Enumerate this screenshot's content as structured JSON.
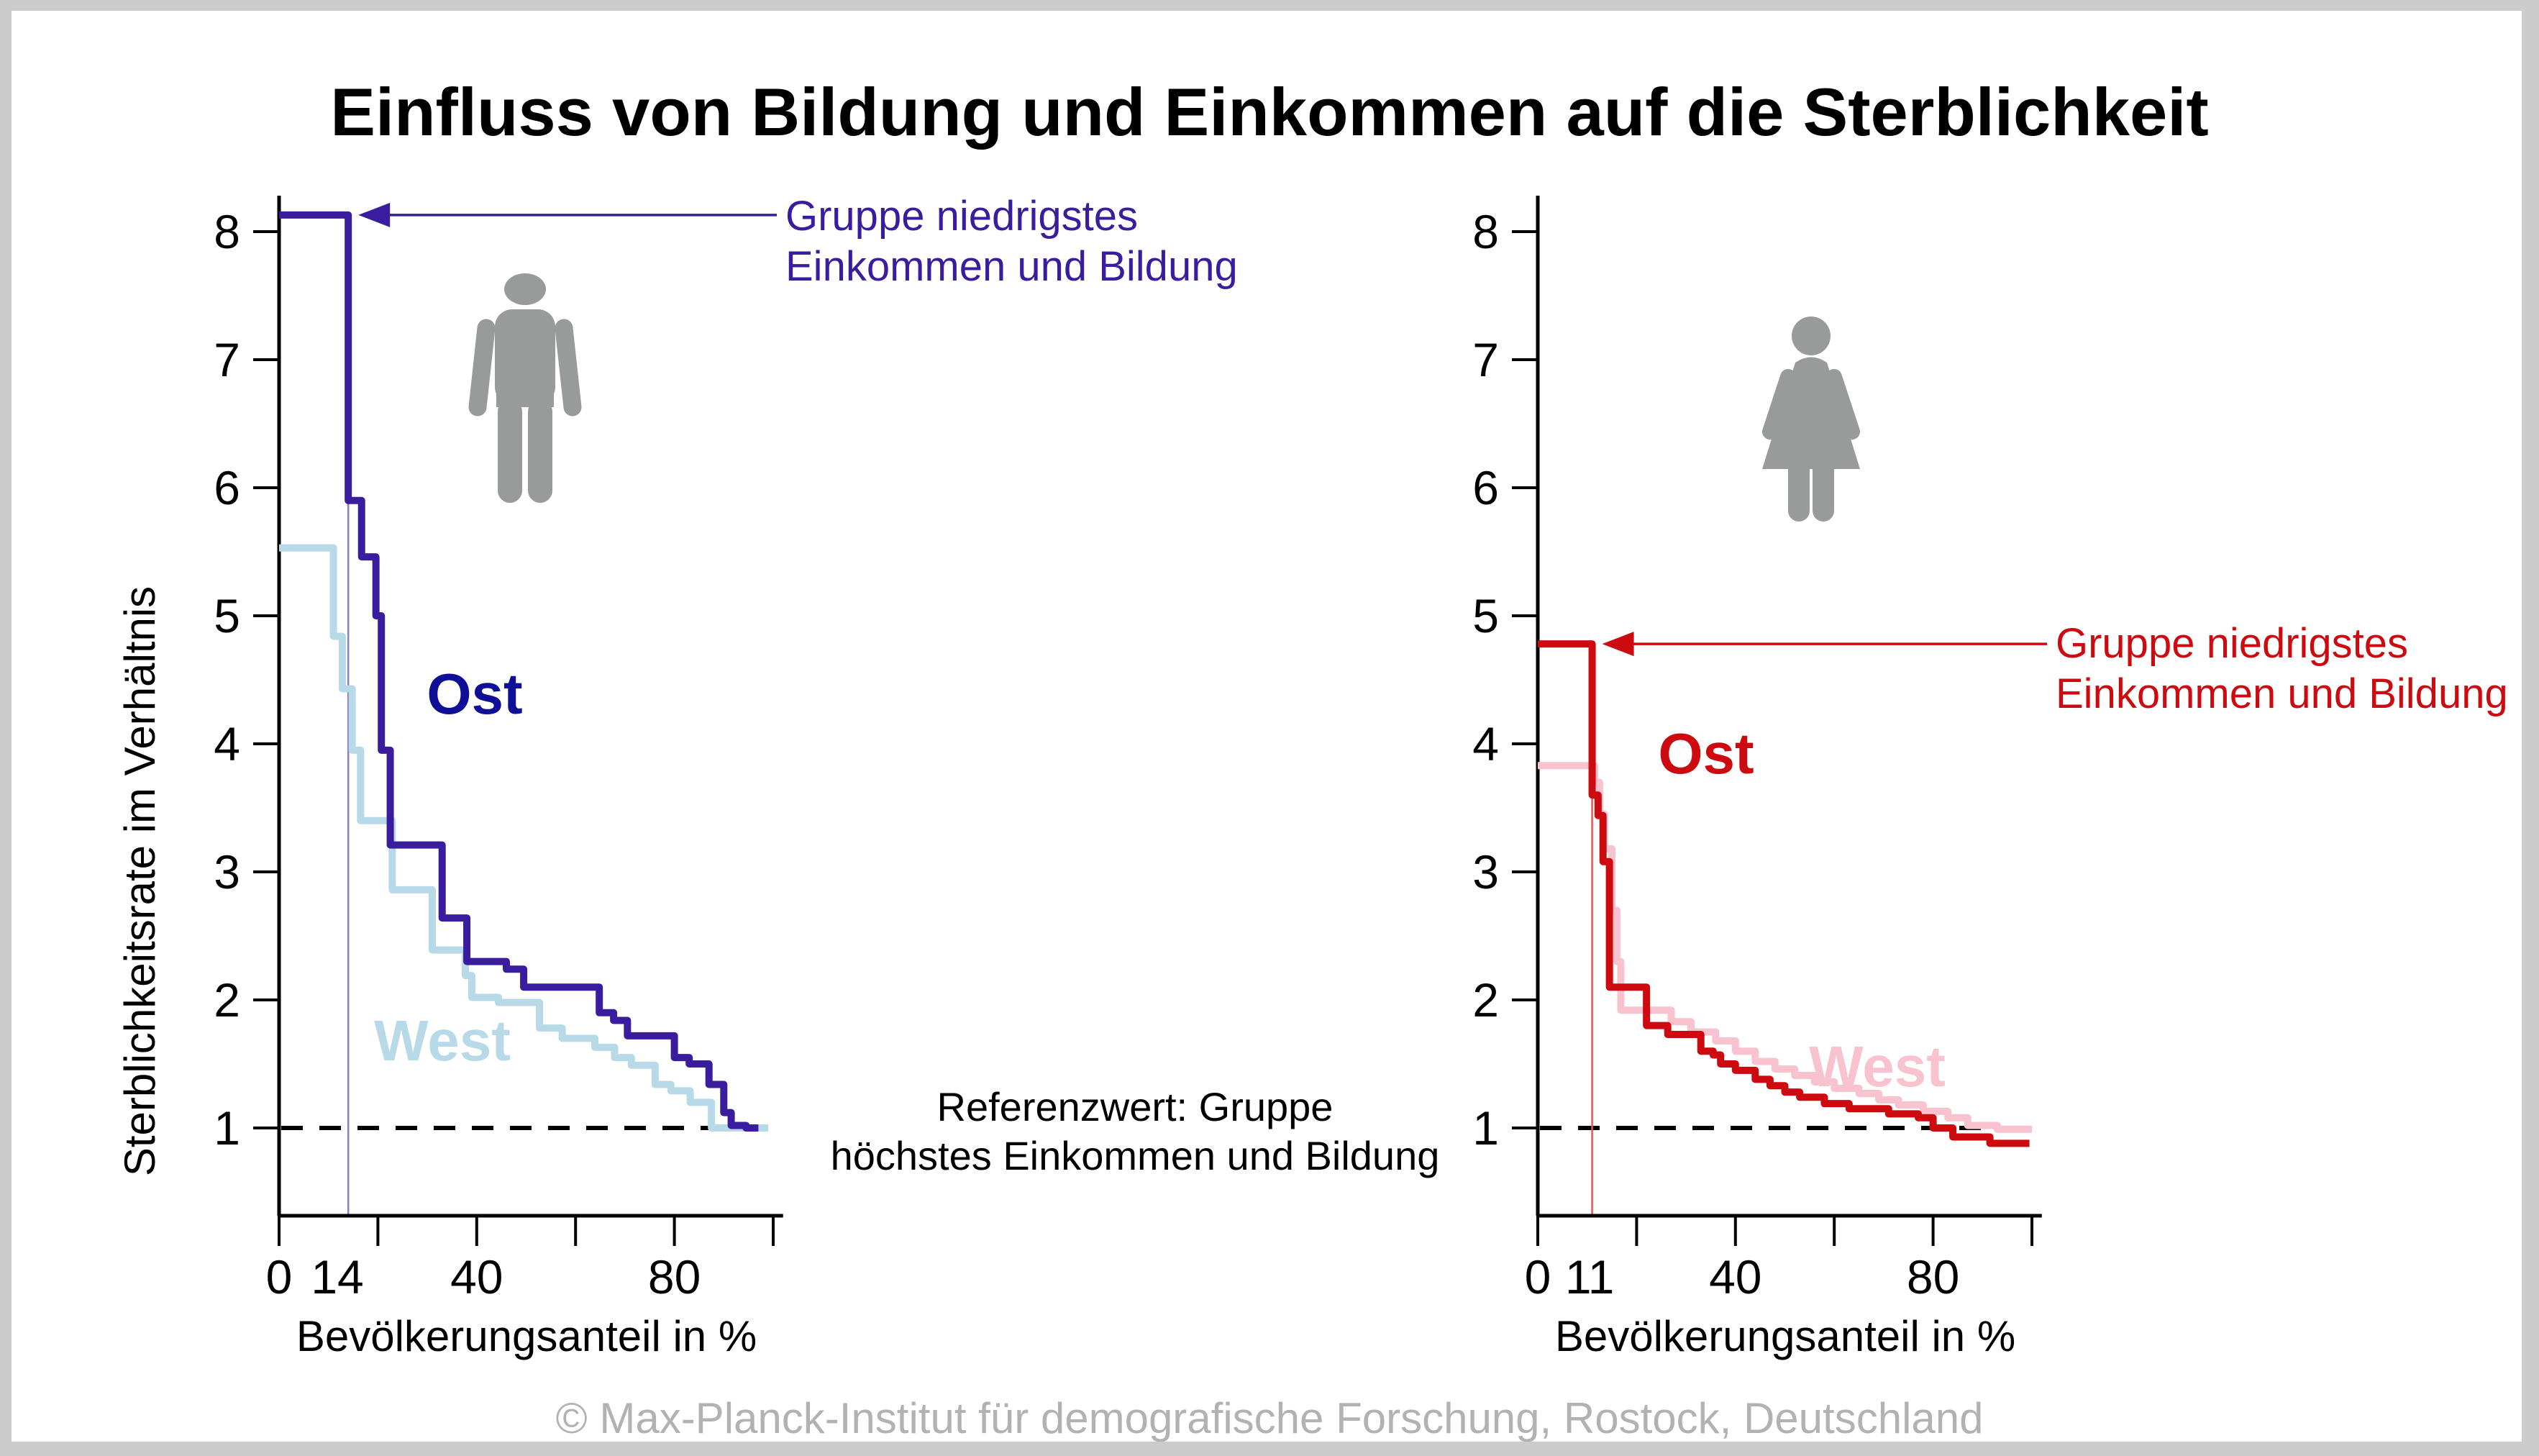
{
  "frame": {
    "background": "#cccccc",
    "card_background": "#ffffff"
  },
  "title": "Einfluss von Bildung und Einkommen auf die Sterblichkeit",
  "y_axis_label": "Sterblichkeitsrate im Verhältnis",
  "x_axis_label": "Bevölkerungsanteil in %",
  "annotation": {
    "line1": "Gruppe niedrigstes",
    "line2": "Einkommen und Bildung"
  },
  "reference_note": {
    "line1": "Referenzwert: Gruppe",
    "line2": "höchstes Einkommen und Bildung"
  },
  "footer": "© Max-Planck-Institut für demografische Forschung, Rostock, Deutschland",
  "colors": {
    "title": "#000000",
    "axis": "#000000",
    "reference_dashed_line": "#000000",
    "footer": "#b2b2b2",
    "icon_gray": "#999a9a",
    "ost_men_curve": "#3a1d9e",
    "ost_men_label": "#0e0e96",
    "west_men": "#b7d9e8",
    "ost_women": "#cc0a10",
    "west_women": "#f8c3cf",
    "marker_men": "#8a7ad0",
    "marker_women": "#dd5a5a"
  },
  "chart_data": [
    {
      "type": "line",
      "style": "step-after",
      "icon": "male-icon",
      "x": {
        "min": 0,
        "max": 100,
        "ticks": [
          0,
          20,
          40,
          60,
          80,
          100
        ],
        "tick_labels": {
          "0": "0",
          "40": "40",
          "80": "80"
        },
        "special_tick": {
          "value": 14,
          "label": "14",
          "label_position": 11.8
        }
      },
      "y": {
        "min": 0.3,
        "max": 8.3,
        "ticks": [
          1,
          2,
          3,
          4,
          5,
          6,
          7,
          8
        ]
      },
      "reference_value": 1,
      "series": [
        {
          "name": "Ost",
          "color": "#3a1d9e",
          "label_color": "#0e0e96",
          "x_end": 97,
          "steps": [
            [
              0,
              8.13
            ],
            [
              14,
              5.9
            ],
            [
              16.7,
              5.46
            ],
            [
              19.6,
              5.0
            ],
            [
              20.7,
              3.95
            ],
            [
              22.5,
              3.21
            ],
            [
              33,
              2.64
            ],
            [
              38,
              2.3
            ],
            [
              46,
              2.24
            ],
            [
              49.5,
              2.1
            ],
            [
              64.8,
              1.9
            ],
            [
              67.7,
              1.84
            ],
            [
              70.5,
              1.72
            ],
            [
              80,
              1.55
            ],
            [
              83,
              1.5
            ],
            [
              87,
              1.34
            ],
            [
              90,
              1.12
            ],
            [
              91.5,
              1.02
            ],
            [
              94.5,
              1.0
            ]
          ]
        },
        {
          "name": "West",
          "color": "#b7d9e8",
          "label_color": "#b7d9e8",
          "x_end": 99,
          "steps": [
            [
              0,
              5.53
            ],
            [
              11,
              4.84
            ],
            [
              12.8,
              4.43
            ],
            [
              14.8,
              3.95
            ],
            [
              16.5,
              3.4
            ],
            [
              22.9,
              2.86
            ],
            [
              31,
              2.39
            ],
            [
              37.7,
              2.19
            ],
            [
              39,
              2.02
            ],
            [
              44.4,
              1.98
            ],
            [
              52.7,
              1.78
            ],
            [
              57.3,
              1.7
            ],
            [
              63.9,
              1.63
            ],
            [
              67.9,
              1.55
            ],
            [
              71.3,
              1.49
            ],
            [
              76.1,
              1.34
            ],
            [
              79.3,
              1.29
            ],
            [
              83.2,
              1.2
            ],
            [
              87.5,
              1.0
            ]
          ]
        }
      ]
    },
    {
      "type": "line",
      "style": "step-after",
      "icon": "female-icon",
      "x": {
        "min": 0,
        "max": 100,
        "ticks": [
          0,
          20,
          40,
          60,
          80,
          100
        ],
        "tick_labels": {
          "0": "0",
          "40": "40",
          "80": "80"
        },
        "special_tick": {
          "value": 11,
          "label": "11",
          "label_position": 10.5
        }
      },
      "y": {
        "min": 0.3,
        "max": 8.3,
        "ticks": [
          1,
          2,
          3,
          4,
          5,
          6,
          7,
          8
        ]
      },
      "reference_value": 1,
      "series": [
        {
          "name": "Ost",
          "color": "#cc0a10",
          "label_color": "#cc0a10",
          "x_end": 99.5,
          "steps": [
            [
              0,
              4.78
            ],
            [
              11,
              3.6
            ],
            [
              12.2,
              3.44
            ],
            [
              13.2,
              3.08
            ],
            [
              14.5,
              2.1
            ],
            [
              22,
              1.8
            ],
            [
              26.3,
              1.73
            ],
            [
              33,
              1.6
            ],
            [
              35.5,
              1.57
            ],
            [
              37,
              1.5
            ],
            [
              40,
              1.45
            ],
            [
              44,
              1.38
            ],
            [
              47,
              1.33
            ],
            [
              50,
              1.28
            ],
            [
              53,
              1.24
            ],
            [
              58,
              1.19
            ],
            [
              63,
              1.15
            ],
            [
              71,
              1.11
            ],
            [
              77,
              1.08
            ],
            [
              80,
              1.0
            ],
            [
              84,
              0.93
            ],
            [
              91.5,
              0.88
            ]
          ]
        },
        {
          "name": "West",
          "color": "#f8c3cf",
          "label_color": "#f8c3cf",
          "x_end": 100,
          "steps": [
            [
              0,
              3.83
            ],
            [
              11.5,
              3.7
            ],
            [
              12.5,
              3.45
            ],
            [
              13.5,
              3.18
            ],
            [
              15,
              2.7
            ],
            [
              16,
              2.3
            ],
            [
              16.8,
              1.92
            ],
            [
              27,
              1.83
            ],
            [
              31,
              1.75
            ],
            [
              36,
              1.68
            ],
            [
              40,
              1.6
            ],
            [
              44,
              1.52
            ],
            [
              48,
              1.46
            ],
            [
              52,
              1.41
            ],
            [
              56,
              1.36
            ],
            [
              60,
              1.31
            ],
            [
              65,
              1.27
            ],
            [
              69,
              1.22
            ],
            [
              73,
              1.18
            ],
            [
              78,
              1.13
            ],
            [
              83,
              1.08
            ],
            [
              87,
              1.02
            ],
            [
              93,
              0.99
            ]
          ]
        }
      ]
    }
  ]
}
